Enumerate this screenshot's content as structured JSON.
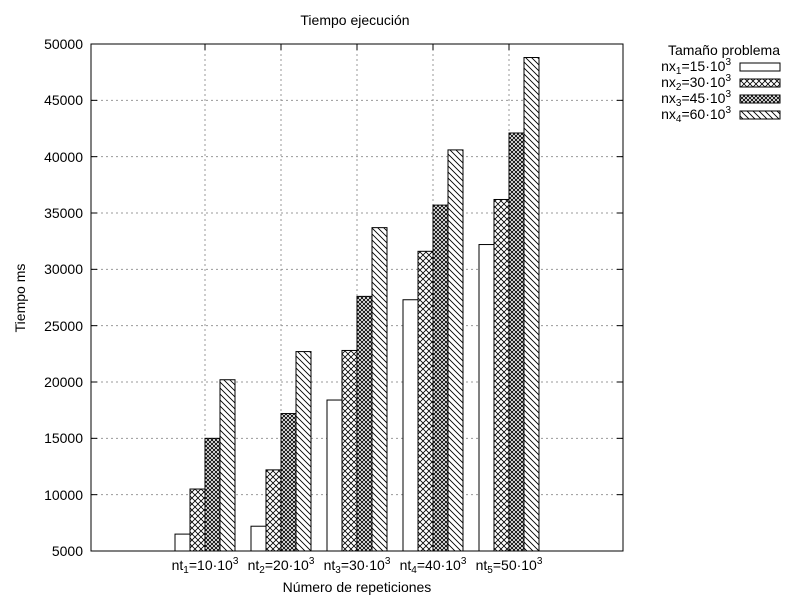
{
  "chart_data": {
    "type": "bar",
    "title": "Tiempo ejecución",
    "xlabel": "Número de repeticiones",
    "ylabel": "Tiempo ms",
    "ylim": [
      5000,
      50000
    ],
    "yticks": [
      5000,
      10000,
      15000,
      20000,
      25000,
      30000,
      35000,
      40000,
      45000,
      50000
    ],
    "grid": true,
    "legend_title": "Tamaño problema",
    "legend_position": "outside-top-right",
    "categories": [
      {
        "var": "nt",
        "index": "1",
        "value": "=10·10",
        "exp": "3"
      },
      {
        "var": "nt",
        "index": "2",
        "value": "=20·10",
        "exp": "3"
      },
      {
        "var": "nt",
        "index": "3",
        "value": "=30·10",
        "exp": "3"
      },
      {
        "var": "nt",
        "index": "4",
        "value": "=40·10",
        "exp": "3"
      },
      {
        "var": "nt",
        "index": "5",
        "value": "=50·10",
        "exp": "3"
      }
    ],
    "series": [
      {
        "name": {
          "var": "nx",
          "index": "1",
          "value": "=15·10",
          "exp": "3"
        },
        "pattern": "empty",
        "values": [
          6500,
          7200,
          18400,
          27300,
          32200
        ]
      },
      {
        "name": {
          "var": "nx",
          "index": "2",
          "value": "=30·10",
          "exp": "3"
        },
        "pattern": "crosshatch",
        "values": [
          10500,
          12200,
          22800,
          31600,
          36200
        ]
      },
      {
        "name": {
          "var": "nx",
          "index": "3",
          "value": "=45·10",
          "exp": "3"
        },
        "pattern": "densecross",
        "values": [
          15000,
          17200,
          27600,
          35700,
          42100
        ]
      },
      {
        "name": {
          "var": "nx",
          "index": "4",
          "value": "=60·10",
          "exp": "3"
        },
        "pattern": "diagonal",
        "values": [
          20200,
          22700,
          33700,
          40600,
          48800
        ]
      }
    ]
  }
}
